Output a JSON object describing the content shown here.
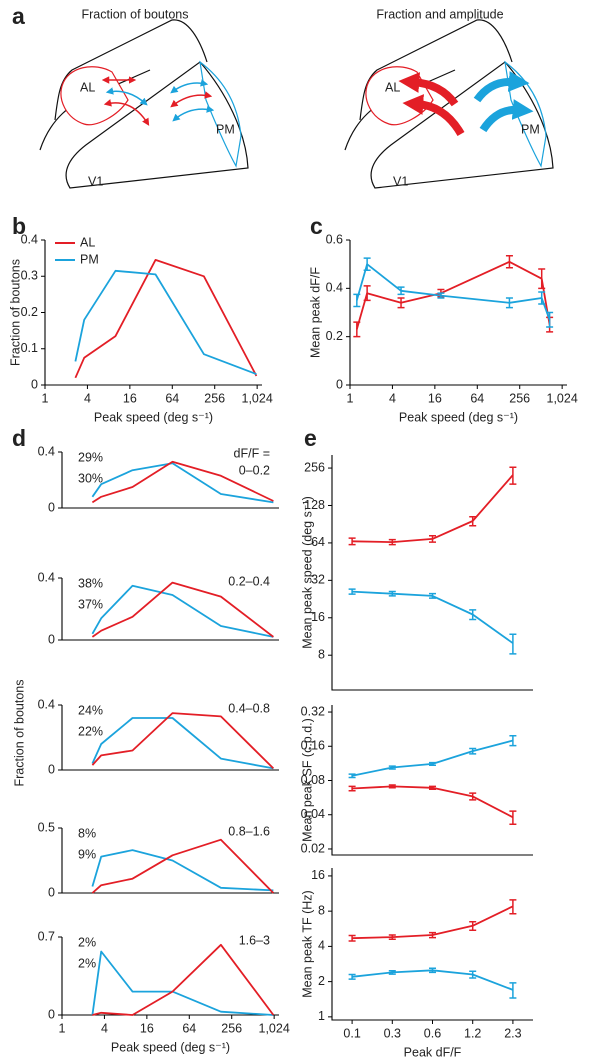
{
  "diagram": {
    "label": "a",
    "panels": [
      {
        "title": "Fraction of boutons",
        "areas": {
          "al": "AL",
          "pm": "PM",
          "v1": "V1"
        }
      },
      {
        "title": "Fraction and amplitude",
        "areas": {
          "al": "AL",
          "pm": "PM",
          "v1": "V1"
        }
      }
    ]
  },
  "chart_data": [
    {
      "type": "line",
      "label": "b",
      "xlabel": "Peak speed (deg s⁻¹)",
      "ylabel": "Fraction of boutons",
      "xscale": "log",
      "x": [
        2.7,
        3.6,
        10,
        37,
        180,
        1000
      ],
      "xlim": [
        1,
        1200
      ],
      "xticks": [
        1,
        4,
        16,
        64,
        256,
        {
          "value": 1024,
          "label": "1,024"
        }
      ],
      "ylim": [
        0,
        0.4
      ],
      "yticks": [
        0,
        0.1,
        0.2,
        0.3,
        0.4
      ],
      "legend": "top-left",
      "series": [
        {
          "name": "AL",
          "color": "#e31e26",
          "values": [
            0.02,
            0.075,
            0.135,
            0.345,
            0.3,
            0.025
          ]
        },
        {
          "name": "PM",
          "color": "#1ba3dc",
          "values": [
            0.065,
            0.18,
            0.315,
            0.305,
            0.085,
            0.03
          ]
        }
      ]
    },
    {
      "type": "line",
      "label": "c",
      "xlabel": "Peak speed (deg s⁻¹)",
      "ylabel": "Mean peak dF/F",
      "xscale": "log",
      "x": [
        1.25,
        1.75,
        5.3,
        19.5,
        183,
        525,
        680
      ],
      "xlim": [
        1,
        1200
      ],
      "xticks": [
        1,
        4,
        16,
        64,
        256,
        {
          "value": 1024,
          "label": "1,024"
        }
      ],
      "ylim": [
        0,
        0.6
      ],
      "yticks": [
        0,
        0.2,
        0.4,
        0.6
      ],
      "series": [
        {
          "color": "#e31e26",
          "values": [
            0.23,
            0.38,
            0.34,
            0.38,
            0.51,
            0.44,
            0.25
          ],
          "errors": [
            0.03,
            0.03,
            0.02,
            0.015,
            0.025,
            0.04,
            0.03
          ]
        },
        {
          "color": "#1ba3dc",
          "values": [
            0.35,
            0.5,
            0.39,
            0.37,
            0.34,
            0.36,
            0.27
          ],
          "errors": [
            0.025,
            0.025,
            0.015,
            0.01,
            0.02,
            0.025,
            0.03
          ]
        }
      ]
    },
    {
      "type": "line",
      "label": "d",
      "annotation": "dF/F =",
      "range": "0–0.2",
      "xscale": "log",
      "x": [
        2.7,
        3.6,
        10,
        37,
        180,
        1000
      ],
      "xlim": [
        1,
        1200
      ],
      "ylim": [
        0,
        0.4
      ],
      "yticks": [
        0,
        0.4
      ],
      "series": [
        {
          "color": "#1ba3dc",
          "share": "29%",
          "values": [
            0.08,
            0.17,
            0.27,
            0.32,
            0.1,
            0.04
          ]
        },
        {
          "color": "#e31e26",
          "share": "30%",
          "values": [
            0.04,
            0.08,
            0.15,
            0.33,
            0.23,
            0.05
          ]
        }
      ]
    },
    {
      "type": "line",
      "range": "0.2–0.4",
      "xscale": "log",
      "x": [
        2.7,
        3.6,
        10,
        37,
        180,
        1000
      ],
      "xlim": [
        1,
        1200
      ],
      "ylim": [
        0,
        0.4
      ],
      "yticks": [
        0,
        0.4
      ],
      "series": [
        {
          "color": "#1ba3dc",
          "share": "38%",
          "values": [
            0.04,
            0.14,
            0.35,
            0.29,
            0.09,
            0.02
          ]
        },
        {
          "color": "#e31e26",
          "share": "37%",
          "values": [
            0.02,
            0.06,
            0.15,
            0.37,
            0.28,
            0.02
          ]
        }
      ]
    },
    {
      "type": "line",
      "range": "0.4–0.8",
      "ylabel": "Fraction of boutons",
      "xscale": "log",
      "x": [
        2.7,
        3.6,
        10,
        37,
        180,
        1000
      ],
      "xlim": [
        1,
        1200
      ],
      "ylim": [
        0,
        0.4
      ],
      "yticks": [
        0,
        0.4
      ],
      "series": [
        {
          "color": "#1ba3dc",
          "share": "24%",
          "values": [
            0.04,
            0.16,
            0.32,
            0.32,
            0.07,
            0.01
          ]
        },
        {
          "color": "#e31e26",
          "share": "22%",
          "values": [
            0.03,
            0.09,
            0.12,
            0.35,
            0.33,
            0.01
          ]
        }
      ]
    },
    {
      "type": "line",
      "range": "0.8–1.6",
      "xscale": "log",
      "x": [
        2.7,
        3.6,
        10,
        37,
        180,
        1000
      ],
      "xlim": [
        1,
        1200
      ],
      "ylim": [
        0,
        0.5
      ],
      "yticks": [
        0,
        0.5
      ],
      "series": [
        {
          "color": "#1ba3dc",
          "share": "8%",
          "values": [
            0.05,
            0.28,
            0.33,
            0.25,
            0.04,
            0.02
          ]
        },
        {
          "color": "#e31e26",
          "share": "9%",
          "values": [
            0,
            0.06,
            0.11,
            0.29,
            0.41,
            0
          ]
        }
      ]
    },
    {
      "type": "line",
      "range": "1.6–3",
      "xlabel": "Peak speed (deg s⁻¹)",
      "xscale": "log",
      "x": [
        2.7,
        3.6,
        10,
        37,
        180,
        1000
      ],
      "xlim": [
        1,
        1200
      ],
      "xticks": [
        1,
        4,
        16,
        64,
        256,
        {
          "value": 1024,
          "label": "1,024"
        }
      ],
      "ylim": [
        0,
        0.7
      ],
      "yticks": [
        0,
        0.7
      ],
      "series": [
        {
          "color": "#1ba3dc",
          "share": "2%",
          "values": [
            0,
            0.57,
            0.21,
            0.21,
            0.03,
            0
          ]
        },
        {
          "color": "#e31e26",
          "share": "2%",
          "values": [
            0,
            0.02,
            0,
            0.21,
            0.63,
            0
          ]
        }
      ]
    },
    {
      "type": "line",
      "label": "e",
      "ylabel": "Mean peak speed (deg s⁻¹)",
      "yscale": "log",
      "ylim": [
        4.2,
        326
      ],
      "yticks": [
        8,
        16,
        32,
        64,
        128,
        256
      ],
      "series": [
        {
          "color": "#e31e26",
          "values": [
            66,
            65,
            69,
            96,
            225
          ],
          "errors": [
            4,
            3,
            4,
            8,
            35
          ]
        },
        {
          "color": "#1ba3dc",
          "values": [
            26,
            25,
            24,
            17,
            10
          ],
          "errors": [
            1.2,
            1,
            1,
            1.5,
            1.8
          ]
        }
      ]
    },
    {
      "type": "line",
      "ylabel": "Mean peak SF (c.p.d.)",
      "yscale": "log",
      "ylim": [
        0.0177,
        0.369
      ],
      "yticks": [
        0.02,
        0.04,
        0.08,
        0.16,
        0.32
      ],
      "series": [
        {
          "color": "#e31e26",
          "values": [
            0.068,
            0.071,
            0.069,
            0.058,
            0.038
          ],
          "errors": [
            0.003,
            0.002,
            0.002,
            0.004,
            0.005
          ]
        },
        {
          "color": "#1ba3dc",
          "values": [
            0.088,
            0.104,
            0.112,
            0.145,
            0.18
          ],
          "errors": [
            0.003,
            0.003,
            0.003,
            0.008,
            0.018
          ]
        }
      ]
    },
    {
      "type": "line",
      "ylabel": "Mean peak TF (Hz)",
      "xlabel": "Peak dF/F",
      "yscale": "log",
      "categories": [
        "0.1",
        "0.3",
        "0.6",
        "1.2",
        "2.3"
      ],
      "ylim": [
        0.94,
        18.7
      ],
      "yticks": [
        1,
        2,
        4,
        8,
        16
      ],
      "series": [
        {
          "color": "#e31e26",
          "values": [
            4.7,
            4.8,
            5.0,
            6.0,
            8.8
          ],
          "errors": [
            0.25,
            0.2,
            0.25,
            0.5,
            1.2
          ]
        },
        {
          "color": "#1ba3dc",
          "values": [
            2.2,
            2.4,
            2.5,
            2.3,
            1.7
          ],
          "errors": [
            0.1,
            0.08,
            0.1,
            0.15,
            0.25
          ]
        }
      ]
    }
  ]
}
